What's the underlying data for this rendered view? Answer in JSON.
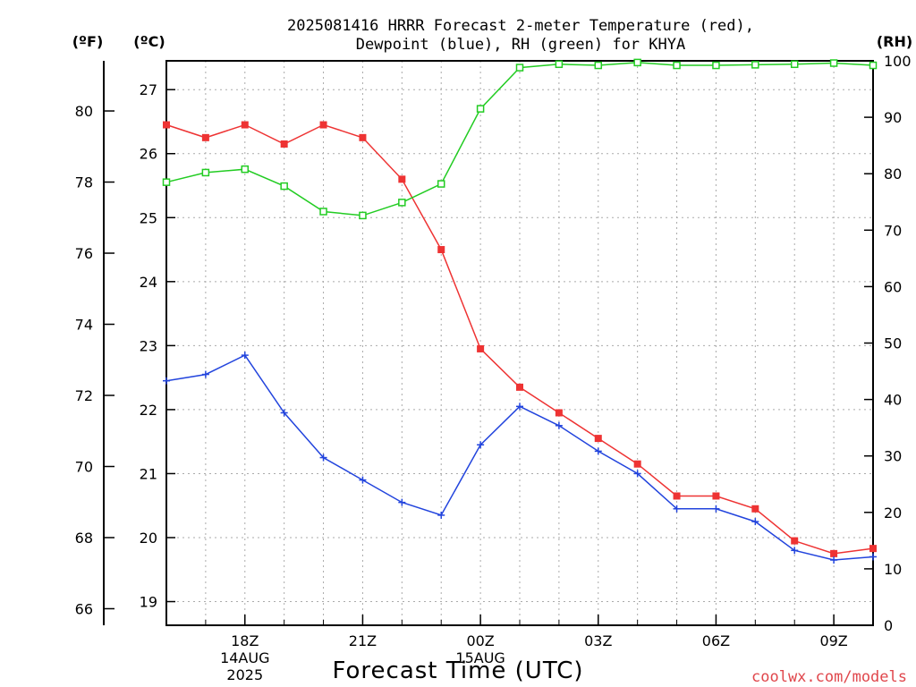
{
  "title": {
    "line1": "2025081416 HRRR Forecast 2-meter Temperature (red),",
    "line2": "Dewpoint (blue), RH (green) for KHYA"
  },
  "units": {
    "fahrenheit": "(ºF)",
    "celsius": "(ºC)",
    "rh": "(RH)"
  },
  "credit": "coolwx.com/models",
  "colors": {
    "temperature": "#ee3333",
    "dewpoint": "#2244dd",
    "rh": "#22cc22",
    "grid": "#aaaaaa"
  },
  "chart_data": {
    "type": "line",
    "title": "2025081416 HRRR Forecast 2-meter Temperature (red), Dewpoint (blue), RH (green) for KHYA",
    "xlabel": "Forecast Time (UTC)",
    "x_hours": [
      16,
      17,
      18,
      19,
      20,
      21,
      22,
      23,
      24,
      25,
      26,
      27,
      28,
      29,
      30,
      31,
      32,
      33,
      34
    ],
    "xlim": [
      16,
      34
    ],
    "x_ticks": [
      {
        "hour": 18,
        "lines": [
          "18Z",
          "14AUG",
          "2025"
        ]
      },
      {
        "hour": 21,
        "lines": [
          "21Z"
        ]
      },
      {
        "hour": 24,
        "lines": [
          "00Z",
          "15AUG"
        ]
      },
      {
        "hour": 27,
        "lines": [
          "03Z"
        ]
      },
      {
        "hour": 30,
        "lines": [
          "06Z"
        ]
      },
      {
        "hour": 33,
        "lines": [
          "09Z"
        ]
      }
    ],
    "ylim_celsius": [
      18.63,
      27.45
    ],
    "yticks_celsius": [
      "19",
      "20",
      "21",
      "22",
      "23",
      "24",
      "25",
      "26",
      "27"
    ],
    "yticks_fahrenheit": [
      "66",
      "68",
      "70",
      "72",
      "74",
      "76",
      "78",
      "80"
    ],
    "ylim_rh": [
      0,
      100
    ],
    "yticks_rh": [
      "0",
      "10",
      "20",
      "30",
      "40",
      "50",
      "60",
      "70",
      "80",
      "90",
      "100"
    ],
    "grid": true,
    "series": [
      {
        "name": "Temperature",
        "color": "#ee3333",
        "marker": "filled-square",
        "axis": "celsius",
        "values": [
          26.45,
          26.25,
          26.45,
          26.15,
          26.45,
          26.25,
          25.6,
          24.5,
          22.95,
          22.35,
          21.95,
          21.55,
          21.15,
          20.65,
          20.65,
          20.45,
          19.95,
          19.75,
          19.83
        ]
      },
      {
        "name": "Dewpoint",
        "color": "#2244dd",
        "marker": "plus",
        "axis": "celsius",
        "values": [
          22.45,
          22.55,
          22.85,
          21.95,
          21.25,
          20.9,
          20.55,
          20.35,
          21.45,
          22.05,
          21.75,
          21.35,
          21.0,
          20.45,
          20.45,
          20.25,
          19.8,
          19.65,
          19.7
        ]
      },
      {
        "name": "RH",
        "color": "#22cc22",
        "marker": "open-square",
        "axis": "rh",
        "values": [
          78.5,
          80.2,
          80.8,
          77.8,
          73.3,
          72.6,
          74.9,
          78.2,
          91.5,
          98.8,
          99.4,
          99.2,
          99.7,
          99.2,
          99.2,
          99.3,
          99.4,
          99.6,
          99.2
        ]
      }
    ]
  }
}
